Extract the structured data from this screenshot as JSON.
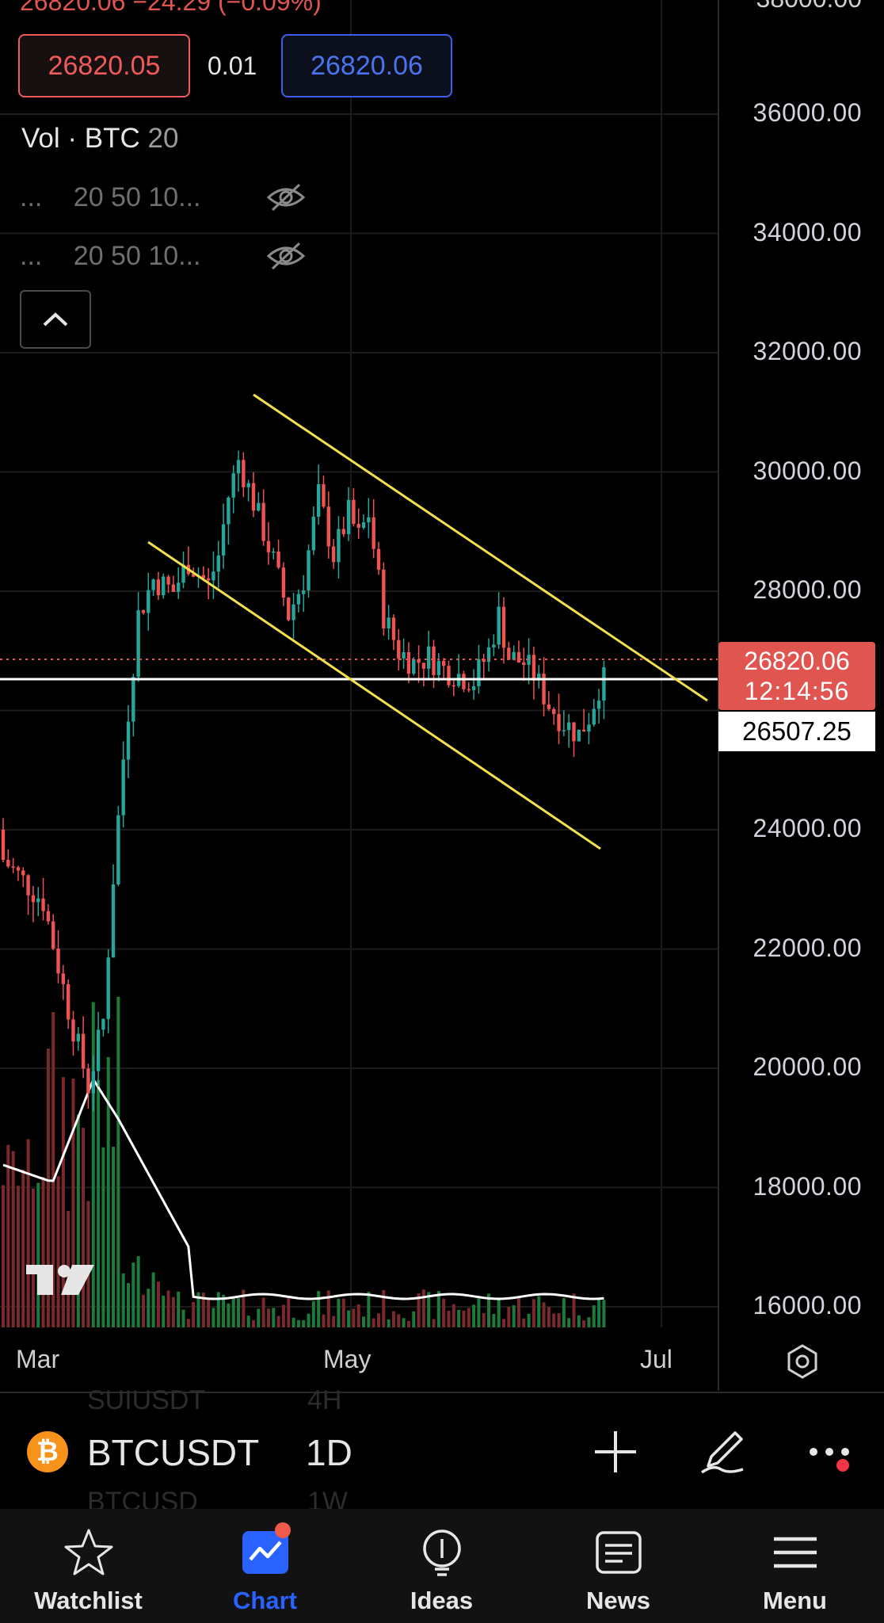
{
  "header": {
    "top_cut_text": "26820.06 −24.29 (−0.09%)",
    "top_cut_right": "38000.00",
    "bid": "26820.05",
    "spread": "0.01",
    "ask": "26820.06"
  },
  "indicators": {
    "vol_prefix": "Vol · BTC",
    "vol_param": "20",
    "row1_dots": "...",
    "row1_params": "20 50 10...",
    "row2_dots": "...",
    "row2_params": "20 50 10..."
  },
  "price_axis": {
    "labels": [
      "36000.00",
      "34000.00",
      "32000.00",
      "30000.00",
      "28000.00",
      "24000.00",
      "22000.00",
      "20000.00",
      "18000.00",
      "16000.00"
    ],
    "current_price": "26820.06",
    "countdown": "12:14:56",
    "hline_price": "26507.25"
  },
  "time_axis": {
    "labels": [
      "Mar",
      "May",
      "Jul"
    ]
  },
  "symbol_bar": {
    "ghost_above_symbol": "SUIUSDT",
    "ghost_above_interval": "4H",
    "symbol": "BTCUSDT",
    "interval": "1D",
    "ghost_below_symbol": "BTCUSD",
    "ghost_below_interval": "1W",
    "coin_glyph": "₿"
  },
  "tabs": [
    {
      "label": "Watchlist",
      "icon": "star-icon"
    },
    {
      "label": "Chart",
      "icon": "chart-icon"
    },
    {
      "label": "Ideas",
      "icon": "lightbulb-icon"
    },
    {
      "label": "News",
      "icon": "news-icon"
    },
    {
      "label": "Menu",
      "icon": "menu-icon"
    }
  ],
  "colors": {
    "up": "#26a69a",
    "down": "#ef5350",
    "trendline": "#f4e04d",
    "accent": "#2962ff",
    "price_tag": "#e0554f"
  },
  "chart_data": {
    "type": "candlestick",
    "symbol": "BTCUSDT",
    "interval": "1D",
    "ylim": [
      16000,
      38000
    ],
    "x_ticks": [
      "Mar",
      "May",
      "Jul"
    ],
    "current_price": 26820.06,
    "horizontal_line": 26507.25,
    "trendlines": [
      {
        "from": {
          "day": 44,
          "price": 31100
        },
        "to": {
          "day": 118,
          "price": 25900
        }
      },
      {
        "from": {
          "day": 28,
          "price": 28800
        },
        "to": {
          "day": 99,
          "price": 23700
        }
      }
    ],
    "volume_ma_period": 20
  }
}
